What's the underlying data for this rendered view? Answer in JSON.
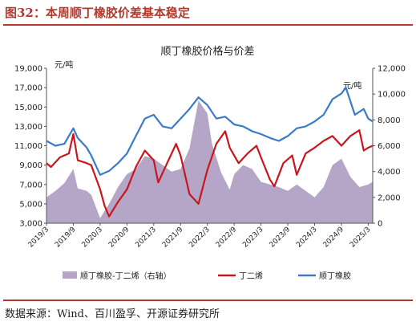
{
  "figure": {
    "title": "图32：本周顺丁橡胶价差基本稳定",
    "source": "数据来源：Wind、百川盈孚、开源证券研究所"
  },
  "colors": {
    "spread": "#b5a6c8",
    "butadiene": "#c8161d",
    "brbr": "#3a7bc8",
    "title": "#b03a2e"
  },
  "chart_data": {
    "type": "line",
    "title": "顺丁橡胶价格与价差",
    "left_unit": "元/吨",
    "right_unit": "元/吨",
    "x_ticks": [
      "2019/3",
      "2019/9",
      "2020/3",
      "2020/9",
      "2021/3",
      "2021/9",
      "2022/3",
      "2022/9",
      "2023/3",
      "2023/9",
      "2024/3",
      "2024/9",
      "2025/3"
    ],
    "x_range": [
      "2019/3",
      "2025/4"
    ],
    "ylim_left": [
      3000,
      19000
    ],
    "ylim_right": [
      0,
      12000
    ],
    "yticks_left": [
      "3,000",
      "5,000",
      "7,000",
      "9,000",
      "11,000",
      "13,000",
      "15,000",
      "17,000",
      "19,000"
    ],
    "yticks_right": [
      "0",
      "2,000",
      "4,000",
      "6,000",
      "8,000",
      "10,000",
      "12,000"
    ],
    "legend_position": "bottom",
    "series": [
      {
        "name": "顺丁橡胶-丁二烯（右轴）",
        "kind": "area",
        "axis": "right",
        "points": [
          [
            "2019/3",
            2000
          ],
          [
            "2019/5",
            2500
          ],
          [
            "2019/7",
            3100
          ],
          [
            "2019/9",
            4200
          ],
          [
            "2019/10",
            2700
          ],
          [
            "2019/12",
            2500
          ],
          [
            "2020/1",
            2200
          ],
          [
            "2020/3",
            400
          ],
          [
            "2020/5",
            1500
          ],
          [
            "2020/7",
            2800
          ],
          [
            "2020/9",
            3800
          ],
          [
            "2020/11",
            4200
          ],
          [
            "2021/1",
            5200
          ],
          [
            "2021/3",
            5000
          ],
          [
            "2021/5",
            4500
          ],
          [
            "2021/7",
            4000
          ],
          [
            "2021/9",
            4200
          ],
          [
            "2021/11",
            5800
          ],
          [
            "2022/1",
            9500
          ],
          [
            "2022/3",
            8500
          ],
          [
            "2022/4",
            6200
          ],
          [
            "2022/6",
            4000
          ],
          [
            "2022/8",
            2600
          ],
          [
            "2022/9",
            3800
          ],
          [
            "2022/11",
            4500
          ],
          [
            "2023/1",
            4200
          ],
          [
            "2023/3",
            3200
          ],
          [
            "2023/5",
            3000
          ],
          [
            "2023/7",
            2800
          ],
          [
            "2023/9",
            2500
          ],
          [
            "2023/11",
            3000
          ],
          [
            "2024/1",
            2500
          ],
          [
            "2024/3",
            2000
          ],
          [
            "2024/5",
            2800
          ],
          [
            "2024/7",
            4500
          ],
          [
            "2024/9",
            5000
          ],
          [
            "2024/11",
            3600
          ],
          [
            "2025/1",
            2800
          ],
          [
            "2025/3",
            3000
          ],
          [
            "2025/4",
            3200
          ]
        ]
      },
      {
        "name": "丁二烯",
        "kind": "line",
        "axis": "left",
        "points": [
          [
            "2019/3",
            9200
          ],
          [
            "2019/4",
            8800
          ],
          [
            "2019/6",
            9800
          ],
          [
            "2019/8",
            10200
          ],
          [
            "2019/9",
            12200
          ],
          [
            "2019/10",
            9500
          ],
          [
            "2019/12",
            9200
          ],
          [
            "2020/1",
            9000
          ],
          [
            "2020/3",
            6500
          ],
          [
            "2020/4",
            4800
          ],
          [
            "2020/5",
            3700
          ],
          [
            "2020/7",
            5200
          ],
          [
            "2020/9",
            6500
          ],
          [
            "2020/11",
            8800
          ],
          [
            "2021/1",
            10500
          ],
          [
            "2021/3",
            9500
          ],
          [
            "2021/4",
            7200
          ],
          [
            "2021/6",
            9200
          ],
          [
            "2021/8",
            11200
          ],
          [
            "2021/9",
            10000
          ],
          [
            "2021/11",
            6000
          ],
          [
            "2022/1",
            5000
          ],
          [
            "2022/3",
            8500
          ],
          [
            "2022/5",
            11200
          ],
          [
            "2022/7",
            12500
          ],
          [
            "2022/8",
            10800
          ],
          [
            "2022/10",
            9200
          ],
          [
            "2022/12",
            10200
          ],
          [
            "2023/2",
            11000
          ],
          [
            "2023/3",
            9800
          ],
          [
            "2023/5",
            7500
          ],
          [
            "2023/6",
            6800
          ],
          [
            "2023/8",
            9200
          ],
          [
            "2023/10",
            10000
          ],
          [
            "2023/11",
            8000
          ],
          [
            "2024/1",
            10200
          ],
          [
            "2024/3",
            10800
          ],
          [
            "2024/5",
            11500
          ],
          [
            "2024/7",
            12000
          ],
          [
            "2024/9",
            11000
          ],
          [
            "2024/11",
            12000
          ],
          [
            "2025/1",
            12600
          ],
          [
            "2025/2",
            10500
          ],
          [
            "2025/3",
            10800
          ],
          [
            "2025/4",
            11000
          ]
        ]
      },
      {
        "name": "顺丁橡胶",
        "kind": "line",
        "axis": "left",
        "points": [
          [
            "2019/3",
            11500
          ],
          [
            "2019/5",
            11000
          ],
          [
            "2019/7",
            11200
          ],
          [
            "2019/9",
            12800
          ],
          [
            "2019/10",
            11800
          ],
          [
            "2019/12",
            10800
          ],
          [
            "2020/1",
            10000
          ],
          [
            "2020/3",
            8000
          ],
          [
            "2020/5",
            8400
          ],
          [
            "2020/7",
            9200
          ],
          [
            "2020/9",
            10200
          ],
          [
            "2020/11",
            12000
          ],
          [
            "2021/1",
            13800
          ],
          [
            "2021/3",
            14200
          ],
          [
            "2021/5",
            13000
          ],
          [
            "2021/7",
            12800
          ],
          [
            "2021/9",
            13800
          ],
          [
            "2021/11",
            14800
          ],
          [
            "2022/1",
            16000
          ],
          [
            "2022/3",
            15200
          ],
          [
            "2022/5",
            13800
          ],
          [
            "2022/7",
            14000
          ],
          [
            "2022/9",
            13200
          ],
          [
            "2022/11",
            13000
          ],
          [
            "2023/1",
            12500
          ],
          [
            "2023/3",
            12200
          ],
          [
            "2023/5",
            11800
          ],
          [
            "2023/7",
            11500
          ],
          [
            "2023/9",
            12000
          ],
          [
            "2023/11",
            12800
          ],
          [
            "2024/1",
            13000
          ],
          [
            "2024/3",
            13500
          ],
          [
            "2024/5",
            14200
          ],
          [
            "2024/7",
            15800
          ],
          [
            "2024/9",
            16400
          ],
          [
            "2024/10",
            17000
          ],
          [
            "2024/12",
            14200
          ],
          [
            "2025/2",
            14800
          ],
          [
            "2025/3",
            13800
          ],
          [
            "2025/4",
            13500
          ]
        ]
      }
    ]
  }
}
